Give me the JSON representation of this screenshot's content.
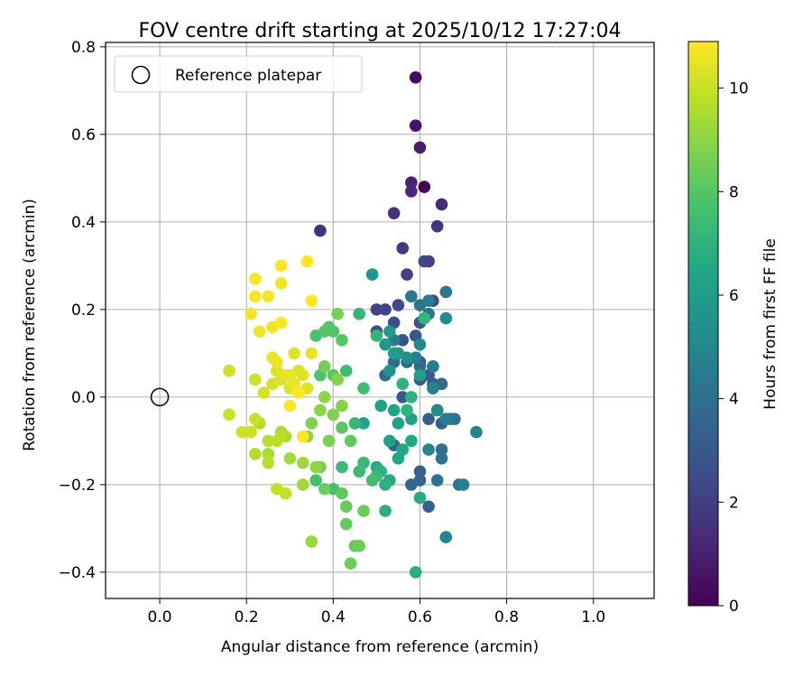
{
  "chart_data": {
    "type": "scatter",
    "title": "FOV centre drift starting at 2025/10/12 17:27:04",
    "xlabel": "Angular distance from reference (arcmin)",
    "ylabel": "Rotation from reference (arcmin)",
    "xlim": [
      -0.125,
      1.14
    ],
    "ylim": [
      -0.46,
      0.81
    ],
    "xticks": [
      {
        "value": 0.0,
        "label": "0.0"
      },
      {
        "value": 0.2,
        "label": "0.2"
      },
      {
        "value": 0.4,
        "label": "0.4"
      },
      {
        "value": 0.6,
        "label": "0.6"
      },
      {
        "value": 0.8,
        "label": "0.8"
      },
      {
        "value": 1.0,
        "label": "1.0"
      }
    ],
    "yticks": [
      {
        "value": -0.4,
        "label": "−0.4"
      },
      {
        "value": -0.2,
        "label": "−0.2"
      },
      {
        "value": 0.0,
        "label": "0.0"
      },
      {
        "value": 0.2,
        "label": "0.2"
      },
      {
        "value": 0.4,
        "label": "0.4"
      },
      {
        "value": 0.6,
        "label": "0.6"
      },
      {
        "value": 0.8,
        "label": "0.8"
      }
    ],
    "grid": true,
    "legend": {
      "position": "top-left",
      "label": "Reference platepar"
    },
    "reference_point": {
      "x": 0.0,
      "y": 0.0
    },
    "colorbar": {
      "label": "Hours from first FF file",
      "colormap": "viridis",
      "range": [
        0,
        10.9
      ],
      "ticks": [
        {
          "value": 0,
          "label": "0"
        },
        {
          "value": 2,
          "label": "2"
        },
        {
          "value": 4,
          "label": "4"
        },
        {
          "value": 6,
          "label": "6"
        },
        {
          "value": 8,
          "label": "8"
        },
        {
          "value": 10,
          "label": "10"
        }
      ]
    },
    "points": [
      [
        0.61,
        0.48,
        0.0
      ],
      [
        0.59,
        0.73,
        0.3
      ],
      [
        0.59,
        0.62,
        0.6
      ],
      [
        0.6,
        0.57,
        0.8
      ],
      [
        0.58,
        0.49,
        1.0
      ],
      [
        0.58,
        0.47,
        1.2
      ],
      [
        0.65,
        0.44,
        1.4
      ],
      [
        0.54,
        0.42,
        1.5
      ],
      [
        0.37,
        0.38,
        1.6
      ],
      [
        0.64,
        0.39,
        1.7
      ],
      [
        0.56,
        0.34,
        1.8
      ],
      [
        0.62,
        0.31,
        1.9
      ],
      [
        0.57,
        0.28,
        2.0
      ],
      [
        0.5,
        0.2,
        2.1
      ],
      [
        0.52,
        0.2,
        2.2
      ],
      [
        0.61,
        0.31,
        2.3
      ],
      [
        0.63,
        0.22,
        2.4
      ],
      [
        0.55,
        0.21,
        2.5
      ],
      [
        0.54,
        0.17,
        2.6
      ],
      [
        0.5,
        0.15,
        2.7
      ],
      [
        0.56,
        0.13,
        2.8
      ],
      [
        0.59,
        0.14,
        2.9
      ],
      [
        0.6,
        0.17,
        3.0
      ],
      [
        0.6,
        0.08,
        3.0
      ],
      [
        0.62,
        0.05,
        3.1
      ],
      [
        0.56,
        0.0,
        3.1
      ],
      [
        0.6,
        0.04,
        3.2
      ],
      [
        0.63,
        0.03,
        3.2
      ],
      [
        0.64,
        -0.03,
        3.3
      ],
      [
        0.62,
        -0.05,
        3.3
      ],
      [
        0.67,
        -0.05,
        3.4
      ],
      [
        0.65,
        -0.06,
        3.4
      ],
      [
        0.6,
        -0.17,
        3.4
      ],
      [
        0.62,
        -0.25,
        3.5
      ],
      [
        0.6,
        -0.19,
        3.5
      ],
      [
        0.58,
        -0.2,
        3.6
      ],
      [
        0.54,
        -0.11,
        3.6
      ],
      [
        0.52,
        0.05,
        3.7
      ],
      [
        0.54,
        0.08,
        3.7
      ],
      [
        0.57,
        0.08,
        3.8
      ],
      [
        0.6,
        0.07,
        3.8
      ],
      [
        0.63,
        0.07,
        3.9
      ],
      [
        0.65,
        0.03,
        3.9
      ],
      [
        0.68,
        -0.05,
        4.0
      ],
      [
        0.65,
        -0.12,
        4.0
      ],
      [
        0.65,
        -0.14,
        4.1
      ],
      [
        0.64,
        -0.19,
        4.1
      ],
      [
        0.69,
        -0.2,
        4.2
      ],
      [
        0.62,
        0.19,
        4.2
      ],
      [
        0.66,
        0.24,
        4.3
      ],
      [
        0.6,
        0.21,
        4.3
      ],
      [
        0.62,
        0.22,
        4.4
      ],
      [
        0.58,
        0.23,
        4.4
      ],
      [
        0.54,
        0.13,
        4.5
      ],
      [
        0.59,
        0.09,
        4.5
      ],
      [
        0.63,
        0.07,
        4.6
      ],
      [
        0.66,
        -0.05,
        4.6
      ],
      [
        0.63,
        0.02,
        4.7
      ],
      [
        0.7,
        -0.2,
        4.7
      ],
      [
        0.73,
        -0.08,
        4.8
      ],
      [
        0.66,
        -0.32,
        4.9
      ],
      [
        0.62,
        -0.12,
        5.0
      ],
      [
        0.6,
        0.12,
        5.1
      ],
      [
        0.64,
        -0.03,
        5.2
      ],
      [
        0.66,
        0.18,
        5.3
      ],
      [
        0.57,
        0.09,
        5.4
      ],
      [
        0.55,
        0.1,
        5.5
      ],
      [
        0.53,
        0.06,
        5.6
      ],
      [
        0.49,
        0.28,
        5.7
      ],
      [
        0.52,
        0.12,
        5.8
      ],
      [
        0.53,
        0.15,
        5.9
      ],
      [
        0.54,
        0.1,
        6.0
      ],
      [
        0.6,
        0.05,
        6.0
      ],
      [
        0.58,
        -0.05,
        6.1
      ],
      [
        0.55,
        -0.06,
        6.1
      ],
      [
        0.53,
        -0.1,
        6.2
      ],
      [
        0.51,
        -0.02,
        6.3
      ],
      [
        0.47,
        -0.06,
        6.3
      ],
      [
        0.54,
        -0.03,
        6.4
      ],
      [
        0.55,
        -0.14,
        6.5
      ],
      [
        0.56,
        -0.12,
        6.5
      ],
      [
        0.58,
        -0.1,
        6.6
      ],
      [
        0.53,
        -0.19,
        6.6
      ],
      [
        0.5,
        -0.16,
        6.7
      ],
      [
        0.6,
        -0.23,
        6.7
      ],
      [
        0.52,
        -0.26,
        6.8
      ],
      [
        0.59,
        -0.4,
        6.8
      ],
      [
        0.51,
        -0.17,
        6.9
      ],
      [
        0.52,
        -0.2,
        6.9
      ],
      [
        0.57,
        -0.03,
        7.0
      ],
      [
        0.58,
        0.0,
        7.0
      ],
      [
        0.56,
        0.03,
        7.0
      ],
      [
        0.61,
        0.18,
        7.1
      ],
      [
        0.5,
        0.14,
        7.1
      ],
      [
        0.46,
        0.19,
        7.2
      ],
      [
        0.45,
        -0.06,
        7.2
      ],
      [
        0.47,
        -0.15,
        7.3
      ],
      [
        0.5,
        -0.18,
        7.3
      ],
      [
        0.46,
        -0.17,
        7.4
      ],
      [
        0.42,
        -0.16,
        7.4
      ],
      [
        0.43,
        0.06,
        7.5
      ],
      [
        0.47,
        0.02,
        7.5
      ],
      [
        0.49,
        -0.19,
        7.6
      ],
      [
        0.4,
        -0.21,
        7.6
      ],
      [
        0.36,
        -0.19,
        7.7
      ],
      [
        0.37,
        0.05,
        7.8
      ],
      [
        0.36,
        0.14,
        7.8
      ],
      [
        0.38,
        0.15,
        7.9
      ],
      [
        0.4,
        0.15,
        7.9
      ],
      [
        0.42,
        0.13,
        8.0
      ],
      [
        0.39,
        0.16,
        8.0
      ],
      [
        0.4,
        0.05,
        8.1
      ],
      [
        0.42,
        -0.07,
        8.1
      ],
      [
        0.44,
        -0.1,
        8.2
      ],
      [
        0.42,
        -0.22,
        8.2
      ],
      [
        0.43,
        -0.29,
        8.3
      ],
      [
        0.45,
        -0.34,
        8.3
      ],
      [
        0.43,
        -0.25,
        8.3
      ],
      [
        0.47,
        -0.26,
        8.4
      ],
      [
        0.38,
        -0.21,
        8.4
      ],
      [
        0.44,
        -0.38,
        8.5
      ],
      [
        0.46,
        -0.34,
        8.5
      ],
      [
        0.41,
        0.19,
        8.6
      ],
      [
        0.38,
        0.07,
        8.6
      ],
      [
        0.39,
        -0.1,
        8.7
      ],
      [
        0.37,
        -0.16,
        8.7
      ],
      [
        0.35,
        -0.06,
        8.8
      ],
      [
        0.4,
        -0.04,
        8.8
      ],
      [
        0.41,
        0.04,
        8.9
      ],
      [
        0.42,
        -0.02,
        8.9
      ],
      [
        0.38,
        0.0,
        9.0
      ],
      [
        0.37,
        -0.03,
        9.0
      ],
      [
        0.36,
        -0.16,
        9.1
      ],
      [
        0.34,
        -0.09,
        9.1
      ],
      [
        0.35,
        -0.33,
        9.2
      ],
      [
        0.33,
        -0.2,
        9.3
      ],
      [
        0.33,
        -0.15,
        9.3
      ],
      [
        0.3,
        -0.14,
        9.4
      ],
      [
        0.29,
        -0.09,
        9.4
      ],
      [
        0.28,
        -0.08,
        9.5
      ],
      [
        0.25,
        -0.13,
        9.5
      ],
      [
        0.23,
        -0.06,
        9.6
      ],
      [
        0.22,
        -0.13,
        9.6
      ],
      [
        0.25,
        -0.1,
        9.7
      ],
      [
        0.25,
        -0.15,
        9.7
      ],
      [
        0.27,
        -0.1,
        9.8
      ],
      [
        0.28,
        -0.09,
        9.8
      ],
      [
        0.27,
        -0.21,
        9.9
      ],
      [
        0.29,
        -0.22,
        9.9
      ],
      [
        0.22,
        -0.05,
        10.0
      ],
      [
        0.16,
        -0.04,
        10.0
      ],
      [
        0.21,
        -0.08,
        10.0
      ],
      [
        0.19,
        -0.08,
        10.1
      ],
      [
        0.22,
        0.04,
        10.1
      ],
      [
        0.16,
        0.06,
        10.1
      ],
      [
        0.24,
        0.01,
        10.2
      ],
      [
        0.26,
        0.03,
        10.2
      ],
      [
        0.27,
        0.06,
        10.3
      ],
      [
        0.28,
        0.04,
        10.3
      ],
      [
        0.3,
        0.02,
        10.3
      ],
      [
        0.32,
        0.06,
        10.3
      ],
      [
        0.33,
        0.05,
        10.4
      ],
      [
        0.34,
        0.02,
        10.4
      ],
      [
        0.31,
        0.1,
        10.4
      ],
      [
        0.35,
        0.1,
        10.5
      ],
      [
        0.3,
        0.05,
        10.5
      ],
      [
        0.29,
        0.05,
        10.5
      ],
      [
        0.31,
        0.03,
        10.6
      ],
      [
        0.27,
        0.08,
        10.6
      ],
      [
        0.26,
        0.09,
        10.6
      ],
      [
        0.28,
        0.26,
        10.7
      ],
      [
        0.26,
        0.16,
        10.7
      ],
      [
        0.23,
        0.15,
        10.7
      ],
      [
        0.21,
        0.19,
        10.7
      ],
      [
        0.22,
        0.27,
        10.8
      ],
      [
        0.22,
        0.23,
        10.8
      ],
      [
        0.25,
        0.23,
        10.8
      ],
      [
        0.28,
        0.3,
        10.8
      ],
      [
        0.34,
        0.31,
        10.9
      ],
      [
        0.35,
        0.22,
        10.9
      ],
      [
        0.28,
        0.17,
        10.9
      ],
      [
        0.32,
        0.01,
        10.9
      ],
      [
        0.3,
        -0.02,
        10.9
      ],
      [
        0.33,
        -0.09,
        10.9
      ]
    ]
  }
}
